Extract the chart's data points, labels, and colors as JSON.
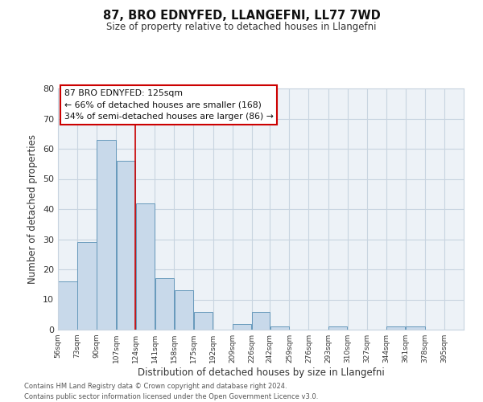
{
  "title": "87, BRO EDNYFED, LLANGEFNI, LL77 7WD",
  "subtitle": "Size of property relative to detached houses in Llangefni",
  "xlabel": "Distribution of detached houses by size in Llangefni",
  "ylabel": "Number of detached properties",
  "bin_edges": [
    56,
    73,
    90,
    107,
    124,
    141,
    158,
    175,
    192,
    209,
    226,
    242,
    259,
    276,
    293,
    310,
    327,
    344,
    361,
    378,
    395
  ],
  "bar_heights": [
    16,
    29,
    63,
    56,
    42,
    17,
    13,
    6,
    0,
    2,
    6,
    1,
    0,
    0,
    1,
    0,
    0,
    1,
    1,
    0
  ],
  "bar_color": "#c8d9ea",
  "bar_edge_color": "#6699bb",
  "bar_edge_width": 0.7,
  "x_tick_labels": [
    "56sqm",
    "73sqm",
    "90sqm",
    "107sqm",
    "124sqm",
    "141sqm",
    "158sqm",
    "175sqm",
    "192sqm",
    "209sqm",
    "226sqm",
    "242sqm",
    "259sqm",
    "276sqm",
    "293sqm",
    "310sqm",
    "327sqm",
    "344sqm",
    "361sqm",
    "378sqm",
    "395sqm"
  ],
  "x_tick_positions": [
    56,
    73,
    90,
    107,
    124,
    141,
    158,
    175,
    192,
    209,
    226,
    242,
    259,
    276,
    293,
    310,
    327,
    344,
    361,
    378,
    395
  ],
  "ylim": [
    0,
    80
  ],
  "yticks": [
    0,
    10,
    20,
    30,
    40,
    50,
    60,
    70,
    80
  ],
  "grid_color": "#c8d4e0",
  "bg_color": "#edf2f7",
  "marker_x": 124,
  "marker_color": "#cc0000",
  "annotation_line1": "87 BRO EDNYFED: 125sqm",
  "annotation_line2": "← 66% of detached houses are smaller (168)",
  "annotation_line3": "34% of semi-detached houses are larger (86) →",
  "footer_line1": "Contains HM Land Registry data © Crown copyright and database right 2024.",
  "footer_line2": "Contains public sector information licensed under the Open Government Licence v3.0."
}
